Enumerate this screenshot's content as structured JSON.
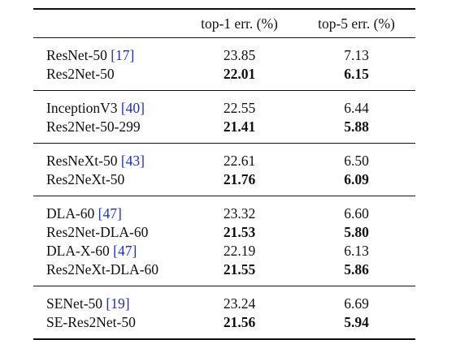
{
  "table": {
    "headers": [
      "",
      "top-1 err. (%)",
      "top-5 err. (%)"
    ],
    "groups": [
      [
        {
          "model": "ResNet-50 ",
          "ref": "[17]",
          "top1": "23.85",
          "top5": "7.13"
        },
        {
          "model": "Res2Net-50",
          "ref": "",
          "top1": "22.01",
          "top5": "6.15"
        }
      ],
      [
        {
          "model": "InceptionV3 ",
          "ref": "[40]",
          "top1": "22.55",
          "top5": "6.44"
        },
        {
          "model": "Res2Net-50-299",
          "ref": "",
          "top1": "21.41",
          "top5": "5.88"
        }
      ],
      [
        {
          "model": "ResNeXt-50 ",
          "ref": "[43]",
          "top1": "22.61",
          "top5": "6.50"
        },
        {
          "model": "Res2NeXt-50",
          "ref": "",
          "top1": "21.76",
          "top5": "6.09"
        }
      ],
      [
        {
          "model": "DLA-60 ",
          "ref": "[47]",
          "top1": "23.32",
          "top5": "6.60"
        },
        {
          "model": "Res2Net-DLA-60",
          "ref": "",
          "top1": "21.53",
          "top5": "5.80"
        },
        {
          "model": "DLA-X-60 ",
          "ref": "[47]",
          "top1": "22.19",
          "top5": "6.13"
        },
        {
          "model": "Res2NeXt-DLA-60",
          "ref": "",
          "top1": "21.55",
          "top5": "5.86"
        }
      ],
      [
        {
          "model": "SENet-50 ",
          "ref": "[19]",
          "top1": "23.24",
          "top5": "6.69"
        },
        {
          "model": "SE-Res2Net-50",
          "ref": "",
          "top1": "21.56",
          "top5": "5.94"
        }
      ]
    ]
  },
  "colors": {
    "text": "#111111",
    "citation": "#1a2bd8",
    "rules": "#111111"
  }
}
